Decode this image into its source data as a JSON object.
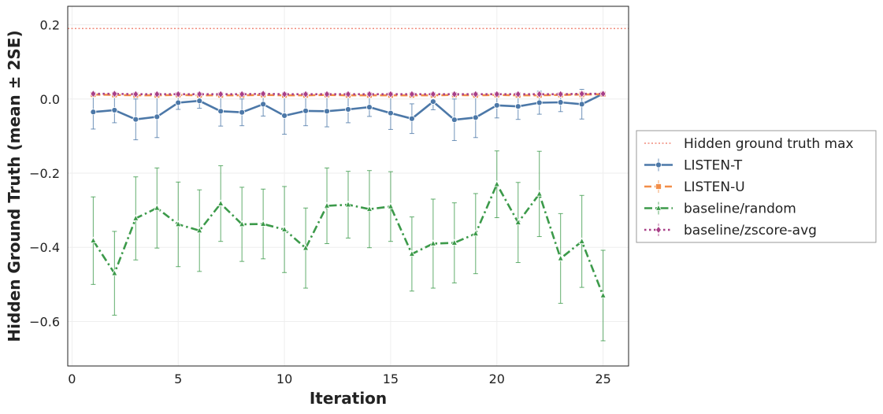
{
  "chart_data": {
    "type": "line",
    "xlabel": "Iteration",
    "ylabel": "Hidden Ground Truth (mean ± 2SE)",
    "xlim": [
      -0.2,
      26.2
    ],
    "ylim": [
      -0.72,
      0.25
    ],
    "xticks": [
      0,
      5,
      10,
      15,
      20,
      25
    ],
    "yticks": [
      0.2,
      0.0,
      -0.2,
      -0.4,
      -0.6
    ],
    "ytick_labels": [
      "0.2",
      "0.0",
      "−0.2",
      "−0.4",
      "−0.6"
    ],
    "grid": true,
    "legend_position": "outside-right",
    "reference_line": {
      "name": "Hidden ground truth max",
      "y": 0.19,
      "color": "#f08a7a"
    },
    "x": [
      1,
      2,
      3,
      4,
      5,
      6,
      7,
      8,
      9,
      10,
      11,
      12,
      13,
      14,
      15,
      16,
      17,
      18,
      19,
      20,
      21,
      22,
      23,
      24,
      25
    ],
    "series": [
      {
        "name": "LISTEN-T",
        "color": "#4c78a8",
        "marker": "circle",
        "dash": "solid",
        "values": [
          -0.035,
          -0.03,
          -0.055,
          -0.048,
          -0.01,
          -0.005,
          -0.033,
          -0.036,
          -0.014,
          -0.045,
          -0.032,
          -0.033,
          -0.028,
          -0.022,
          -0.038,
          -0.053,
          -0.007,
          -0.056,
          -0.05,
          -0.017,
          -0.02,
          -0.01,
          -0.009,
          -0.014,
          0.014
        ],
        "err": [
          0.046,
          0.034,
          0.055,
          0.056,
          0.018,
          0.02,
          0.04,
          0.036,
          0.032,
          0.05,
          0.04,
          0.042,
          0.036,
          0.025,
          0.044,
          0.04,
          0.022,
          0.056,
          0.054,
          0.034,
          0.035,
          0.031,
          0.025,
          0.04,
          0.006
        ]
      },
      {
        "name": "LISTEN-U",
        "color": "#f28e49",
        "marker": "square",
        "dash": "dashed",
        "values": [
          0.012,
          0.011,
          0.01,
          0.01,
          0.011,
          0.01,
          0.01,
          0.01,
          0.011,
          0.01,
          0.01,
          0.011,
          0.01,
          0.01,
          0.01,
          0.01,
          0.01,
          0.011,
          0.01,
          0.011,
          0.01,
          0.01,
          0.011,
          0.012,
          0.013
        ],
        "err": [
          0.006,
          0.005,
          0.006,
          0.006,
          0.005,
          0.006,
          0.005,
          0.006,
          0.005,
          0.006,
          0.005,
          0.006,
          0.005,
          0.006,
          0.005,
          0.006,
          0.005,
          0.006,
          0.005,
          0.006,
          0.005,
          0.006,
          0.005,
          0.008,
          0.005
        ]
      },
      {
        "name": "baseline/random",
        "color": "#3c9a4a",
        "marker": "triangle",
        "dash": "dashdot",
        "values": [
          -0.382,
          -0.47,
          -0.322,
          -0.294,
          -0.338,
          -0.355,
          -0.282,
          -0.338,
          -0.337,
          -0.352,
          -0.402,
          -0.288,
          -0.285,
          -0.297,
          -0.29,
          -0.418,
          -0.39,
          -0.388,
          -0.363,
          -0.23,
          -0.333,
          -0.256,
          -0.43,
          -0.384,
          -0.53
        ],
        "err": [
          0.118,
          0.113,
          0.112,
          0.108,
          0.114,
          0.11,
          0.102,
          0.1,
          0.094,
          0.116,
          0.108,
          0.102,
          0.09,
          0.104,
          0.094,
          0.1,
          0.12,
          0.108,
          0.108,
          0.09,
          0.108,
          0.115,
          0.121,
          0.124,
          0.122
        ]
      },
      {
        "name": "baseline/zscore-avg",
        "color": "#a83f87",
        "marker": "diamond",
        "dash": "dotted",
        "values": [
          0.014,
          0.014,
          0.013,
          0.013,
          0.013,
          0.013,
          0.013,
          0.013,
          0.014,
          0.013,
          0.013,
          0.013,
          0.013,
          0.013,
          0.013,
          0.013,
          0.013,
          0.013,
          0.013,
          0.013,
          0.013,
          0.013,
          0.013,
          0.014,
          0.014
        ],
        "err": [
          0.004,
          0.004,
          0.004,
          0.004,
          0.004,
          0.004,
          0.004,
          0.004,
          0.004,
          0.004,
          0.004,
          0.004,
          0.004,
          0.004,
          0.004,
          0.004,
          0.004,
          0.004,
          0.004,
          0.004,
          0.004,
          0.004,
          0.004,
          0.004,
          0.004
        ]
      }
    ]
  }
}
